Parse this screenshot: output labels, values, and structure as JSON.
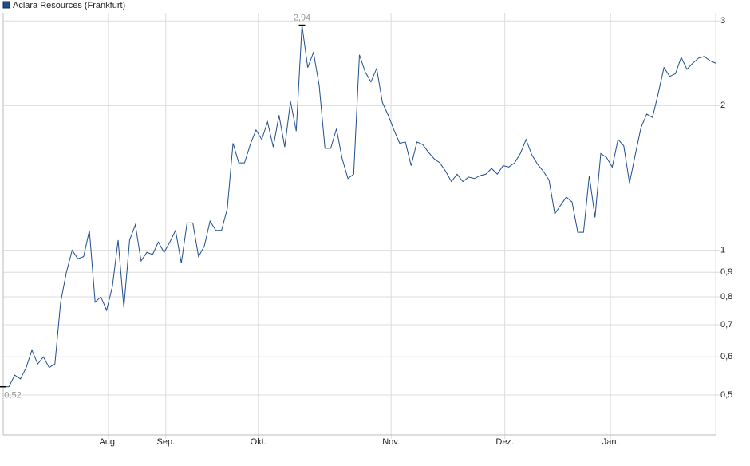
{
  "chart_data": {
    "type": "line",
    "legend": "top-left",
    "grid": true,
    "log_scale": true,
    "series": [
      {
        "name": "Aclara Resources (Frankfurt)",
        "color": "#1f4e8c",
        "values": [
          0.52,
          0.52,
          0.55,
          0.54,
          0.57,
          0.62,
          0.58,
          0.6,
          0.57,
          0.58,
          0.78,
          0.9,
          1.0,
          0.96,
          0.97,
          1.1,
          0.78,
          0.8,
          0.75,
          0.84,
          1.05,
          0.76,
          1.05,
          1.13,
          0.95,
          0.99,
          0.98,
          1.04,
          0.99,
          1.04,
          1.1,
          0.94,
          1.14,
          1.14,
          0.97,
          1.02,
          1.15,
          1.1,
          1.1,
          1.22,
          1.67,
          1.52,
          1.52,
          1.66,
          1.78,
          1.7,
          1.85,
          1.64,
          1.91,
          1.64,
          2.04,
          1.77,
          2.94,
          2.4,
          2.58,
          2.2,
          1.63,
          1.63,
          1.79,
          1.55,
          1.41,
          1.44,
          2.55,
          2.35,
          2.24,
          2.39,
          2.03,
          1.91,
          1.78,
          1.67,
          1.68,
          1.5,
          1.68,
          1.66,
          1.6,
          1.55,
          1.52,
          1.46,
          1.39,
          1.44,
          1.39,
          1.42,
          1.41,
          1.43,
          1.44,
          1.48,
          1.44,
          1.5,
          1.49,
          1.52,
          1.59,
          1.7,
          1.58,
          1.51,
          1.46,
          1.4,
          1.19,
          1.24,
          1.29,
          1.26,
          1.09,
          1.09,
          1.43,
          1.17,
          1.59,
          1.56,
          1.49,
          1.7,
          1.65,
          1.38,
          1.58,
          1.8,
          1.92,
          1.89,
          2.12,
          2.4,
          2.3,
          2.33,
          2.52,
          2.38,
          2.45,
          2.51,
          2.53,
          2.48,
          2.45
        ]
      }
    ],
    "annotations": [
      {
        "value": 2.94,
        "label": "2,94"
      },
      {
        "value": 0.52,
        "label": "0,52"
      }
    ],
    "xlim": [
      0,
      124
    ],
    "xticks": [
      {
        "value": 18.3,
        "label": "Aug."
      },
      {
        "value": 28.3,
        "label": "Sep."
      },
      {
        "value": 44.4,
        "label": "Okt."
      },
      {
        "value": 67.5,
        "label": "Nov."
      },
      {
        "value": 87.3,
        "label": "Dez."
      },
      {
        "value": 105.7,
        "label": "Jan."
      }
    ],
    "ylim": [
      0.413,
      3.12
    ],
    "yticks": [
      3,
      2,
      1,
      {
        "value": 0.9,
        "label": "0,9"
      },
      {
        "value": 0.8,
        "label": "0,8"
      },
      {
        "value": 0.7,
        "label": "0,7"
      },
      {
        "value": 0.6,
        "label": "0,6"
      },
      {
        "value": 0.5,
        "label": "0,5"
      }
    ]
  }
}
